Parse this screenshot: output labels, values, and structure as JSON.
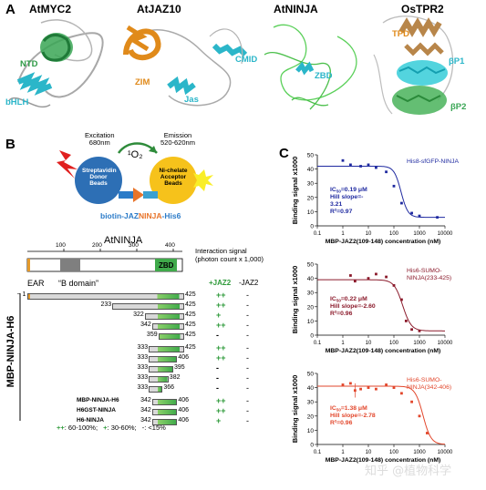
{
  "panel_A": {
    "letter": "A",
    "structures": [
      {
        "title": "AtMYC2",
        "labels": [
          "NTD",
          "bHLH"
        ]
      },
      {
        "title": "AtJAZ10",
        "labels": [
          "ZIM",
          "Jas",
          "CMID"
        ]
      },
      {
        "title": "AtNINJA",
        "labels": [
          "ZBD"
        ]
      },
      {
        "title": "OsTPR2",
        "labels": [
          "TPD",
          "βP1",
          "βP2"
        ]
      }
    ]
  },
  "panel_B": {
    "letter": "B",
    "assay": {
      "excitation": "Excitation\n680nm",
      "singlet_oxygen": "¹O₂",
      "emission": "Emission\n520-620nm",
      "donor": "Streptavidin\nDonor\nBeads",
      "acceptor": "Ni-chelate\nAcceptor\nBeads",
      "construct_parts": [
        "biotin-JAZ",
        "NINJA",
        "-His6"
      ]
    },
    "protein_title": "AtNINJA",
    "ticks": [
      "100",
      "200",
      "300",
      "400"
    ],
    "zbd_label": "ZBD",
    "ear_label": "EAR",
    "bdomain_label": "“B domain”",
    "side_label": "MBP-NINJA-H6",
    "signal_header": "Interaction signal\n(photon count x 1,000)",
    "col_jaz2": "+JAZ2",
    "col_nojaz2": "-JAZ2",
    "constructs": [
      {
        "start": "1",
        "end": "425",
        "plus": "++",
        "minus": "-"
      },
      {
        "start": "233",
        "end": "425",
        "plus": "++",
        "minus": "-"
      },
      {
        "start": "322",
        "end": "425",
        "plus": "+",
        "minus": "-"
      },
      {
        "start": "342",
        "end": "425",
        "plus": "++",
        "minus": "-"
      },
      {
        "start": "359",
        "end": "425",
        "plus": "-",
        "minus": "-"
      },
      {
        "start": "333",
        "end": "425",
        "plus": "++",
        "minus": "-"
      },
      {
        "start": "333",
        "end": "406",
        "plus": "++",
        "minus": "-"
      },
      {
        "start": "333",
        "end": "395",
        "plus": "-",
        "minus": "-"
      },
      {
        "start": "333",
        "end": "382",
        "plus": "-",
        "minus": "-"
      },
      {
        "start": "333",
        "end": "366",
        "plus": "-",
        "minus": "-"
      },
      {
        "name": "MBP-NINJA-H6",
        "start": "342",
        "end": "406",
        "plus": "++",
        "minus": "-"
      },
      {
        "name": "H6GST-NINJA",
        "start": "342",
        "end": "406",
        "plus": "++",
        "minus": "-"
      },
      {
        "name": "H6-NINJA",
        "start": "342",
        "end": "406",
        "plus": "+",
        "minus": "-"
      }
    ],
    "legend": [
      {
        "sym": "++",
        "text": ": 60-100%;"
      },
      {
        "sym": "+",
        "text": ": 30-60%;"
      },
      {
        "sym": "-",
        "text": ": <15%"
      }
    ]
  },
  "panel_C": {
    "letter": "C",
    "ylabel": "Binding signal x1000",
    "xlabel": "MBP-JAZ2(109-148) concentration (nM)",
    "watermark": "知乎 @植物科学"
  },
  "chart_data": [
    {
      "type": "scatter",
      "title": "His8-sfGFP-NINJA",
      "xlabel": "MBP-JAZ2(109-148) concentration (nM)",
      "ylabel": "Binding signal x1000",
      "xscale": "log",
      "xlim": [
        0.1,
        10000
      ],
      "ylim": [
        0,
        50
      ],
      "xticks": [
        "0.1",
        "1",
        "10",
        "100",
        "1000",
        "10000"
      ],
      "yticks": [
        "0",
        "10",
        "20",
        "30",
        "40",
        "50"
      ],
      "color": "#1f2aa0",
      "annotations": [
        "IC50=0.19 μM",
        "Hill slope=-",
        "3.21",
        "R²=0.97"
      ],
      "x": [
        1,
        2,
        5,
        10,
        20,
        50,
        100,
        200,
        500,
        1000,
        5000
      ],
      "y": [
        46,
        43,
        42,
        43,
        41,
        38,
        28,
        16,
        9,
        7,
        6
      ],
      "fit": {
        "top": 42,
        "bottom": 6,
        "ic50_nM": 190,
        "hill": -3.21
      }
    },
    {
      "type": "scatter",
      "title": "His6-SUMO-\nNINJA(233-425)",
      "xlabel": "MBP-JAZ2(109-148) concentration (nM)",
      "ylabel": "Binding signal x1000",
      "xscale": "log",
      "xlim": [
        0.1,
        10000
      ],
      "ylim": [
        0,
        50
      ],
      "xticks": [
        "0.1",
        "1",
        "10",
        "100",
        "1000",
        "10000"
      ],
      "yticks": [
        "0",
        "10",
        "20",
        "30",
        "40",
        "50"
      ],
      "color": "#8b1a2b",
      "annotations": [
        "IC50=0.22 μM",
        "Hill slope=-2.60",
        "R²=0.96"
      ],
      "x": [
        2,
        3,
        10,
        20,
        50,
        100,
        200,
        300,
        500,
        1000
      ],
      "y": [
        42,
        38,
        40,
        43,
        41,
        35,
        25,
        10,
        4,
        3
      ],
      "fit": {
        "top": 39,
        "bottom": 3,
        "ic50_nM": 220,
        "hill": -2.6
      }
    },
    {
      "type": "scatter",
      "title": "His6-SUMO-\nNINJA(342-406)",
      "xlabel": "MBP-JAZ2(109-148) concentration (nM)",
      "ylabel": "Binding signal x1000",
      "xscale": "log",
      "xlim": [
        0.1,
        10000
      ],
      "ylim": [
        0,
        50
      ],
      "xticks": [
        "0.1",
        "1",
        "10",
        "100",
        "1000",
        "10000"
      ],
      "yticks": [
        "0",
        "10",
        "20",
        "30",
        "40",
        "50"
      ],
      "color": "#e2462b",
      "annotations": [
        "IC50=1.38 μM",
        "Hill slope=-2.78",
        "R²=0.96"
      ],
      "x": [
        1,
        2,
        3,
        5,
        10,
        20,
        50,
        100,
        200,
        500,
        1000,
        2000
      ],
      "y": [
        42,
        43,
        38,
        39,
        40,
        39,
        42,
        40,
        36,
        30,
        20,
        8
      ],
      "errors": [
        0,
        0,
        5,
        0,
        0,
        0,
        0,
        0,
        0,
        0,
        0,
        0
      ],
      "fit": {
        "top": 41,
        "bottom": 0,
        "ic50_nM": 1380,
        "hill": -2.78
      }
    }
  ]
}
